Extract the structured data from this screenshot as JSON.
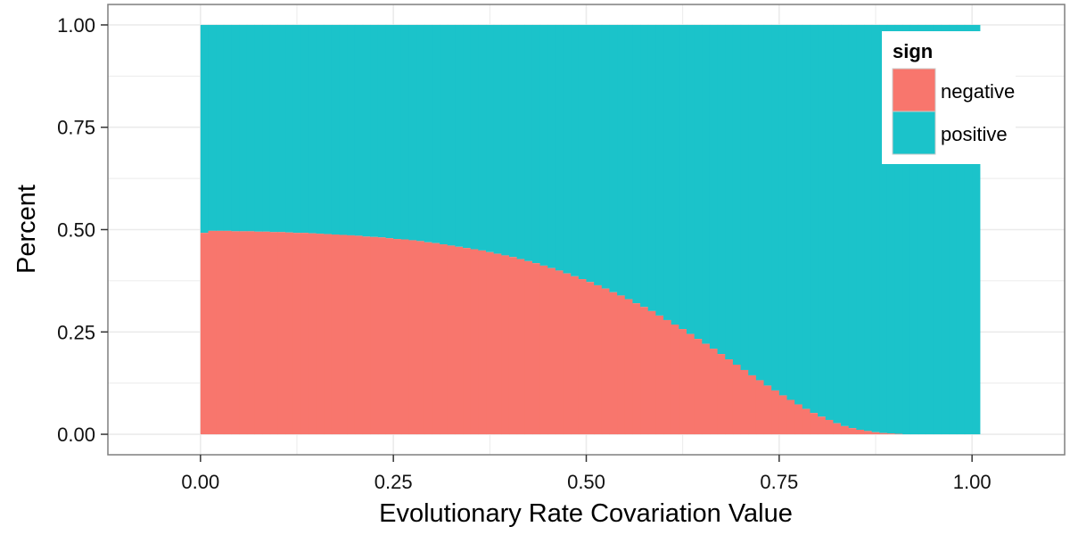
{
  "chart_data": {
    "type": "bar",
    "stacked": "fill",
    "xlabel": "Evolutionary Rate Covariation Value",
    "ylabel": "Percent",
    "xlim": [
      -0.12,
      1.12
    ],
    "ylim": [
      -0.05,
      1.05
    ],
    "x_ticks": [
      "0.00",
      "0.25",
      "0.50",
      "0.75",
      "1.00"
    ],
    "y_ticks": [
      "0.00",
      "0.25",
      "0.50",
      "0.75",
      "1.00"
    ],
    "bin_width": 0.01,
    "x": [
      0.0,
      0.01,
      0.02,
      0.03,
      0.04,
      0.05,
      0.06,
      0.07,
      0.08,
      0.09,
      0.1,
      0.11,
      0.12,
      0.13,
      0.14,
      0.15,
      0.16,
      0.17,
      0.18,
      0.19,
      0.2,
      0.21,
      0.22,
      0.23,
      0.24,
      0.25,
      0.26,
      0.27,
      0.28,
      0.29,
      0.3,
      0.31,
      0.32,
      0.33,
      0.34,
      0.35,
      0.36,
      0.37,
      0.38,
      0.39,
      0.4,
      0.41,
      0.42,
      0.43,
      0.44,
      0.45,
      0.46,
      0.47,
      0.48,
      0.49,
      0.5,
      0.51,
      0.52,
      0.53,
      0.54,
      0.55,
      0.56,
      0.57,
      0.58,
      0.59,
      0.6,
      0.61,
      0.62,
      0.63,
      0.64,
      0.65,
      0.66,
      0.67,
      0.68,
      0.69,
      0.7,
      0.71,
      0.72,
      0.73,
      0.74,
      0.75,
      0.76,
      0.77,
      0.78,
      0.79,
      0.8,
      0.81,
      0.82,
      0.83,
      0.84,
      0.85,
      0.86,
      0.87,
      0.88,
      0.89,
      0.9,
      0.91,
      0.92,
      0.93,
      0.94,
      0.95,
      0.96,
      0.97,
      0.98,
      0.99,
      1.0
    ],
    "series": [
      {
        "name": "negative",
        "color": "#F8766D",
        "values": [
          0.492,
          0.497,
          0.497,
          0.497,
          0.496,
          0.496,
          0.496,
          0.495,
          0.495,
          0.494,
          0.494,
          0.493,
          0.492,
          0.492,
          0.491,
          0.49,
          0.489,
          0.488,
          0.487,
          0.486,
          0.485,
          0.483,
          0.482,
          0.481,
          0.479,
          0.477,
          0.476,
          0.474,
          0.472,
          0.469,
          0.467,
          0.464,
          0.461,
          0.458,
          0.455,
          0.452,
          0.449,
          0.445,
          0.441,
          0.437,
          0.433,
          0.428,
          0.423,
          0.418,
          0.412,
          0.406,
          0.4,
          0.393,
          0.386,
          0.379,
          0.372,
          0.364,
          0.356,
          0.347,
          0.339,
          0.33,
          0.32,
          0.311,
          0.301,
          0.29,
          0.279,
          0.268,
          0.257,
          0.245,
          0.233,
          0.221,
          0.209,
          0.196,
          0.183,
          0.17,
          0.157,
          0.144,
          0.132,
          0.119,
          0.107,
          0.095,
          0.084,
          0.073,
          0.062,
          0.052,
          0.043,
          0.035,
          0.027,
          0.02,
          0.015,
          0.011,
          0.008,
          0.005,
          0.003,
          0.002,
          0.001,
          0.0,
          0.0,
          0.0,
          0.0,
          0.0,
          0.0,
          0.0,
          0.0,
          0.0,
          0.0
        ]
      },
      {
        "name": "positive",
        "color": "#1BC3CA",
        "values": [
          0.508,
          0.503,
          0.503,
          0.503,
          0.504,
          0.504,
          0.504,
          0.505,
          0.505,
          0.506,
          0.506,
          0.507,
          0.508,
          0.508,
          0.509,
          0.51,
          0.511,
          0.512,
          0.513,
          0.514,
          0.515,
          0.517,
          0.518,
          0.519,
          0.521,
          0.523,
          0.524,
          0.526,
          0.528,
          0.531,
          0.533,
          0.536,
          0.539,
          0.542,
          0.545,
          0.548,
          0.551,
          0.555,
          0.559,
          0.563,
          0.567,
          0.572,
          0.577,
          0.582,
          0.588,
          0.594,
          0.6,
          0.607,
          0.614,
          0.621,
          0.628,
          0.636,
          0.644,
          0.653,
          0.661,
          0.67,
          0.68,
          0.689,
          0.699,
          0.71,
          0.721,
          0.732,
          0.743,
          0.755,
          0.767,
          0.779,
          0.791,
          0.804,
          0.817,
          0.83,
          0.843,
          0.856,
          0.868,
          0.881,
          0.893,
          0.905,
          0.916,
          0.927,
          0.938,
          0.948,
          0.957,
          0.965,
          0.973,
          0.98,
          0.985,
          0.989,
          0.992,
          0.995,
          0.997,
          0.998,
          0.999,
          1.0,
          1.0,
          1.0,
          1.0,
          1.0,
          1.0,
          1.0,
          1.0,
          1.0,
          1.0
        ]
      }
    ],
    "legend": {
      "title": "sign",
      "position": "top-right",
      "entries": [
        "negative",
        "positive"
      ]
    },
    "grid": true,
    "panel_background": "#ffffff",
    "grid_color": "#ebebeb",
    "border_color": "#7f7f7f"
  }
}
